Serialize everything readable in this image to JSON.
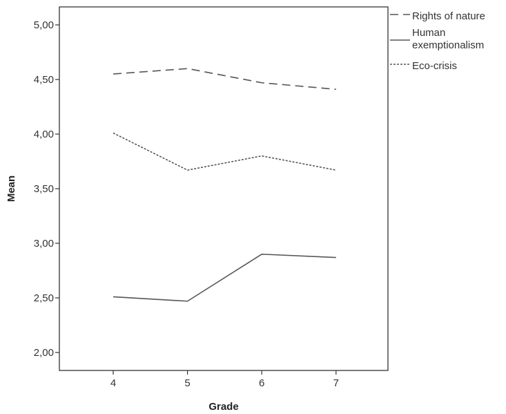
{
  "chart_data": {
    "type": "line",
    "xlabel": "Grade",
    "ylabel": "Mean",
    "categories": [
      "4",
      "5",
      "6",
      "7"
    ],
    "y_ticks": [
      "2,00",
      "2,50",
      "3,00",
      "3,50",
      "4,00",
      "4,50",
      "5,00"
    ],
    "y_tick_values": [
      2.0,
      2.5,
      3.0,
      3.5,
      4.0,
      4.5,
      5.0
    ],
    "ylim": [
      1.85,
      5.18
    ],
    "grid": false,
    "legend_position": "top-right, outside plot",
    "series": [
      {
        "name": "Rights of nature",
        "values": [
          4.55,
          4.6,
          4.47,
          4.41
        ],
        "line_style": "dashed"
      },
      {
        "name": "Human exemptionalism",
        "values": [
          2.51,
          2.47,
          2.9,
          2.87
        ],
        "line_style": "solid"
      },
      {
        "name": "Eco-crisis",
        "values": [
          4.01,
          3.67,
          3.8,
          3.67
        ],
        "line_style": "dotted"
      }
    ],
    "legend_labels": [
      {
        "lines": [
          "Rights of nature"
        ]
      },
      {
        "lines": [
          "Human",
          "exemptionalism"
        ]
      },
      {
        "lines": [
          "Eco-crisis"
        ]
      }
    ],
    "line_color": "#555555"
  }
}
